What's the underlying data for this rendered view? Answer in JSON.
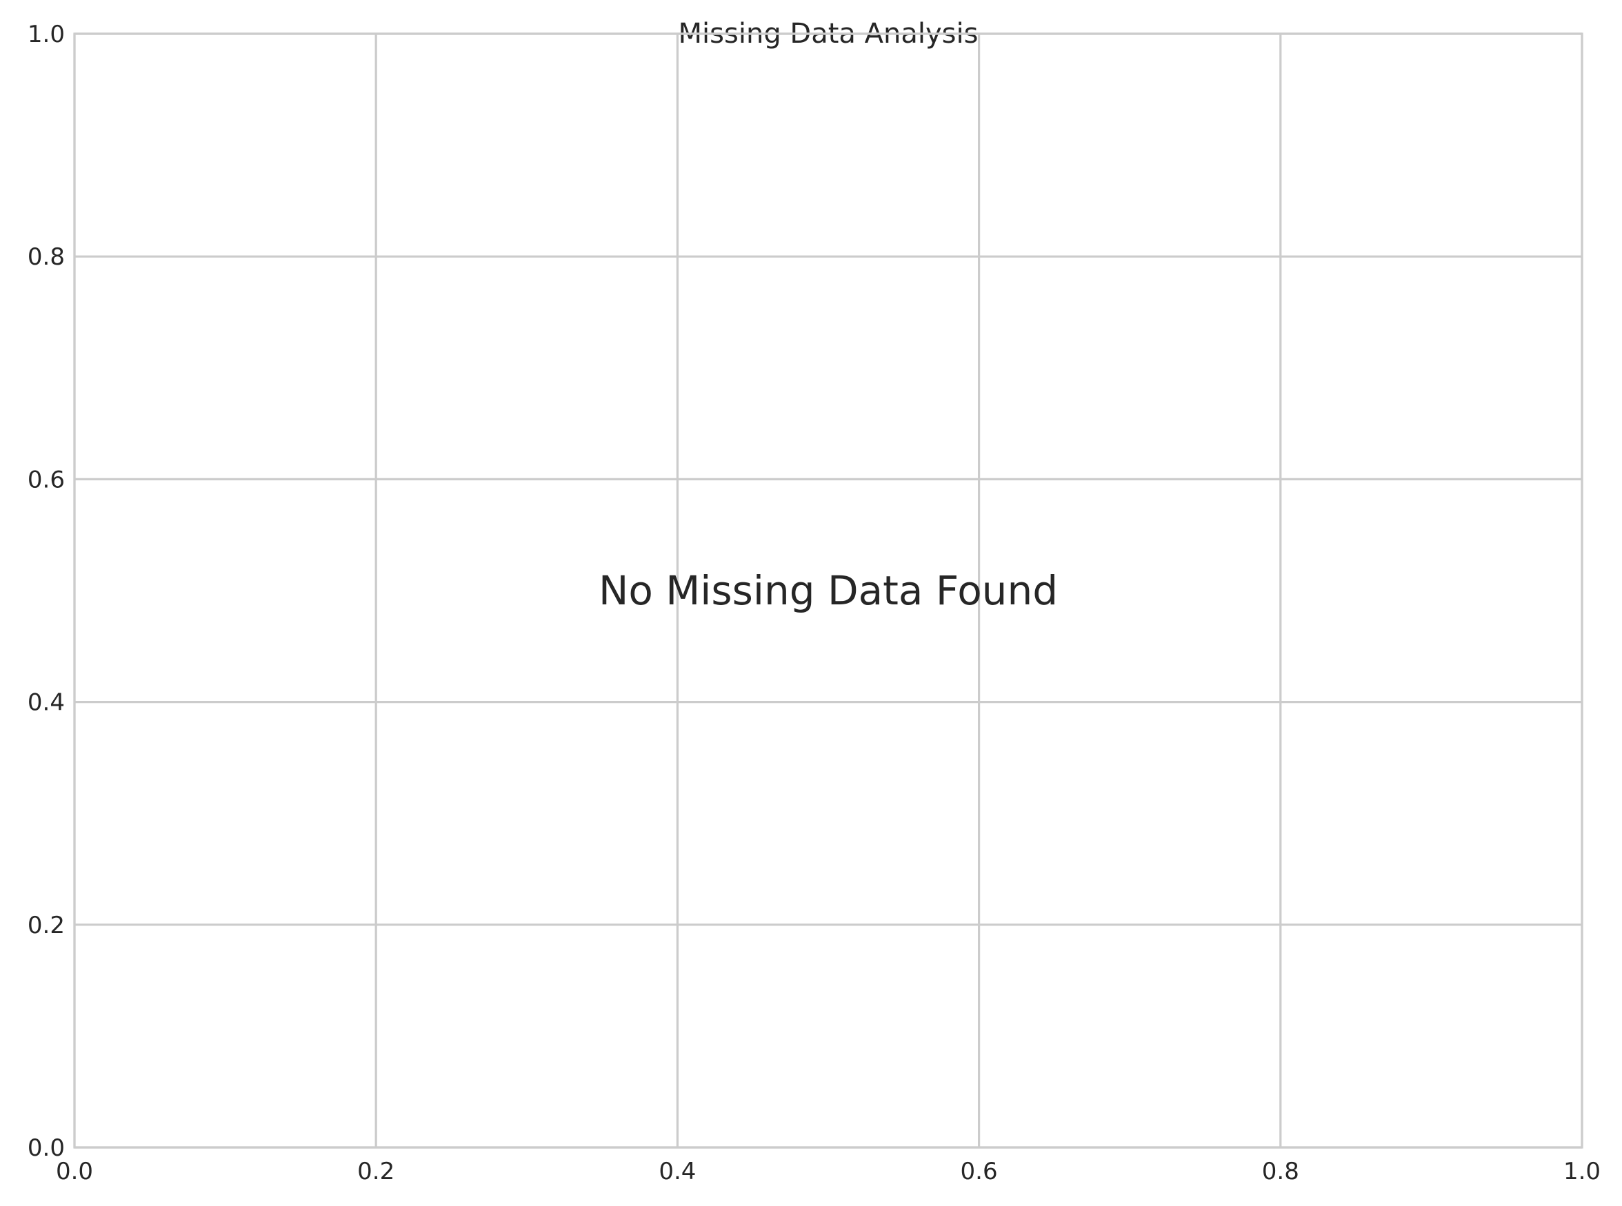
{
  "chart_data": {
    "type": "scatter",
    "title": "Missing Data Analysis",
    "xlabel": "",
    "ylabel": "",
    "xlim": [
      0.0,
      1.0
    ],
    "ylim": [
      0.0,
      1.0
    ],
    "x_ticks": [
      0.0,
      0.2,
      0.4,
      0.6,
      0.8,
      1.0
    ],
    "y_ticks": [
      0.0,
      0.2,
      0.4,
      0.6,
      0.8,
      1.0
    ],
    "x_tick_labels": [
      "0.0",
      "0.2",
      "0.4",
      "0.6",
      "0.8",
      "1.0"
    ],
    "y_tick_labels": [
      "0.0",
      "0.2",
      "0.4",
      "0.6",
      "0.8",
      "1.0"
    ],
    "grid": true,
    "series": [],
    "annotations": [
      {
        "text": "No Missing Data Found",
        "x": 0.5,
        "y": 0.5
      }
    ],
    "colors": {
      "background": "#ffffff",
      "grid": "#cccccc",
      "text": "#262626"
    }
  }
}
